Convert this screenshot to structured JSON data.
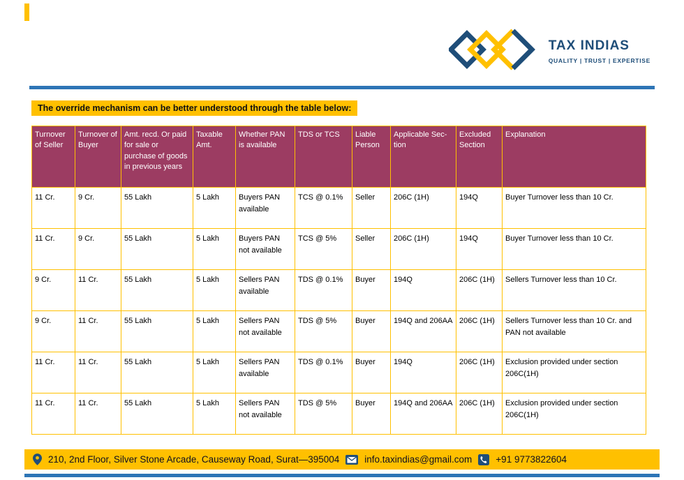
{
  "brand": {
    "name": "TAX INDIAS",
    "tagline": "QUALITY | TRUST | EXPERTISE"
  },
  "title": "The override mechanism can be better understood through the table below:",
  "table": {
    "headers": [
      "Turnover of Seller",
      "Turnover of Buyer",
      "Amt. recd. Or paid for sale or purchase of goods in previous years",
      "Taxable Amt.",
      "Whether PAN is available",
      "TDS or TCS",
      "Liable Person",
      "Applicable Sec-tion",
      "Excluded Section",
      "Explanation"
    ],
    "rows": [
      [
        "11 Cr.",
        "9 Cr.",
        "55 Lakh",
        "5 Lakh",
        "Buyers PAN available",
        "TCS @ 0.1%",
        "Seller",
        "206C (1H)",
        "194Q",
        "Buyer Turnover less than 10 Cr."
      ],
      [
        "11 Cr.",
        "9 Cr.",
        "55 Lakh",
        "5 Lakh",
        "Buyers PAN not available",
        "TCS @ 5%",
        "Seller",
        "206C (1H)",
        "194Q",
        "Buyer Turnover less than 10 Cr."
      ],
      [
        "9 Cr.",
        "11 Cr.",
        "55 Lakh",
        "5 Lakh",
        "Sellers PAN available",
        "TDS @ 0.1%",
        "Buyer",
        "194Q",
        "206C (1H)",
        "Sellers Turnover less than 10 Cr."
      ],
      [
        "9 Cr.",
        "11 Cr.",
        "55 Lakh",
        "5 Lakh",
        "Sellers PAN not available",
        "TDS @ 5%",
        "Buyer",
        "194Q and 206AA",
        "206C (1H)",
        "Sellers Turnover less than 10 Cr. and PAN not available"
      ],
      [
        "11 Cr.",
        "11 Cr.",
        "55 Lakh",
        "5 Lakh",
        "Sellers PAN available",
        "TDS @ 0.1%",
        "Buyer",
        "194Q",
        "206C (1H)",
        "Exclusion provided under section 206C(1H)"
      ],
      [
        "11 Cr.",
        "11 Cr.",
        "55 Lakh",
        "5 Lakh",
        "Sellers PAN not available",
        "TDS @ 5%",
        "Buyer",
        "194Q and 206AA",
        "206C (1H)",
        "Exclusion provided under section 206C(1H)"
      ]
    ]
  },
  "footer": {
    "address": "210, 2nd Floor, Silver Stone Arcade, Causeway Road, Surat—395004",
    "email": "info.taxindias@gmail.com",
    "phone": "+91 9773822604"
  },
  "icons": {
    "logo": "interlocked-diamonds-icon",
    "location": "location-pin-icon",
    "email": "email-icon",
    "phone": "phone-icon"
  },
  "colors": {
    "table_header_bg": "#9C3C62",
    "accent_gold": "#FFC000",
    "accent_blue": "#2E75B6",
    "brand_navy": "#1F4E79"
  }
}
